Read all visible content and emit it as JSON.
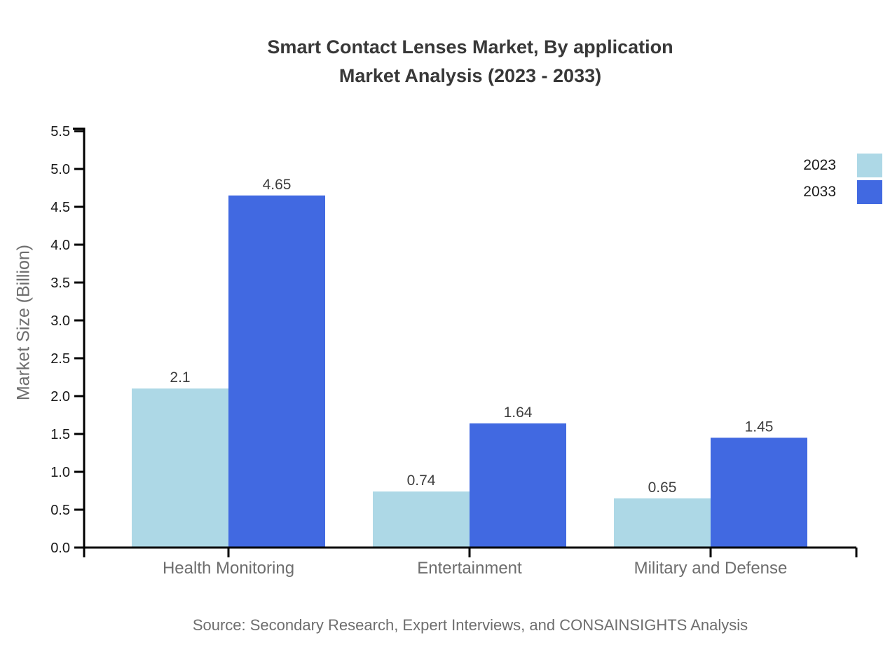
{
  "title": {
    "line1": "Smart Contact Lenses Market, By application",
    "line2": "Market Analysis (2023 - 2033)"
  },
  "legend": {
    "items": [
      {
        "label": "2023",
        "color": "#ADD8E6"
      },
      {
        "label": "2033",
        "color": "#4169E1"
      }
    ]
  },
  "source": "Source: Secondary Research, Expert Interviews, and CONSAINSIGHTS Analysis",
  "chart_data": {
    "type": "bar",
    "title": "Smart Contact Lenses Market, By application Market Analysis (2023 - 2033)",
    "categories": [
      "Health Monitoring",
      "Entertainment",
      "Military and Defense"
    ],
    "series": [
      {
        "name": "2023",
        "color": "#ADD8E6",
        "values": [
          2.1,
          0.74,
          0.65
        ]
      },
      {
        "name": "2033",
        "color": "#4169E1",
        "values": [
          4.65,
          1.64,
          1.45
        ]
      }
    ],
    "value_labels": [
      "2.1",
      "4.65",
      "0.74",
      "1.64",
      "0.65",
      "1.45"
    ],
    "xlabel": "",
    "ylabel": "Market Size (Billion)",
    "ylim": [
      0,
      5.5
    ],
    "ytick_step": 0.5,
    "grid": false,
    "legend_position": "top-right",
    "colors": {
      "axis": "#000000",
      "tick_label": "#1a1a1a",
      "category_label": "#6e6e6e",
      "value_label": "#3d3d3d",
      "title": "#383838",
      "muted_text": "#6e6e6e"
    }
  }
}
